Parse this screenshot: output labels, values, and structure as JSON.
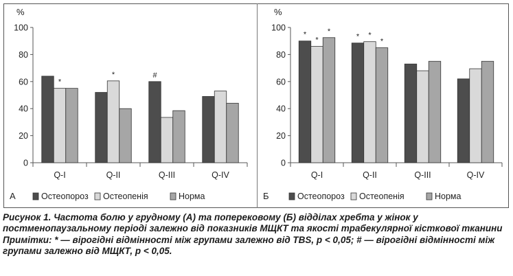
{
  "chart_data": [
    {
      "type": "bar",
      "panel_label": "А",
      "y_unit_label": "%",
      "ylim": [
        0,
        100
      ],
      "yticks": [
        0,
        20,
        40,
        60,
        80,
        100
      ],
      "grid": false,
      "legend_position": "bottom",
      "categories": [
        "Q-I",
        "Q-II",
        "Q-III",
        "Q-IV"
      ],
      "series": [
        {
          "name": "Остеопороз",
          "color": "#4d4d4d",
          "values": [
            64,
            52,
            60,
            49
          ]
        },
        {
          "name": "Остеопенія",
          "color": "#d9d9d9",
          "values": [
            55,
            60.5,
            33.5,
            53
          ]
        },
        {
          "name": "Норма",
          "color": "#a6a6a6",
          "values": [
            55,
            40,
            38.5,
            44
          ]
        }
      ],
      "annotations": [
        {
          "category": "Q-I",
          "series": "Остеопенія",
          "text": "*"
        },
        {
          "category": "Q-II",
          "series": "Остеопенія",
          "text": "*"
        },
        {
          "category": "Q-III",
          "series": "Остеопороз",
          "text": "#"
        }
      ]
    },
    {
      "type": "bar",
      "panel_label": "Б",
      "y_unit_label": "%",
      "ylim": [
        0,
        100
      ],
      "yticks": [
        0,
        20,
        40,
        60,
        80,
        100
      ],
      "grid": false,
      "legend_position": "bottom",
      "categories": [
        "Q-I",
        "Q-II",
        "Q-III",
        "Q-IV"
      ],
      "series": [
        {
          "name": "Остеопороз",
          "color": "#4d4d4d",
          "values": [
            90,
            88.5,
            73,
            62
          ]
        },
        {
          "name": "Остеопенія",
          "color": "#d9d9d9",
          "values": [
            86,
            89.5,
            68,
            69.5
          ]
        },
        {
          "name": "Норма",
          "color": "#a6a6a6",
          "values": [
            92.5,
            85,
            75,
            75
          ]
        }
      ],
      "annotations": [
        {
          "category": "Q-I",
          "series": "Остеопороз",
          "text": "*"
        },
        {
          "category": "Q-I",
          "series": "Остеопенія",
          "text": "*"
        },
        {
          "category": "Q-I",
          "series": "Норма",
          "text": "*"
        },
        {
          "category": "Q-II",
          "series": "Остеопороз",
          "text": "*"
        },
        {
          "category": "Q-II",
          "series": "Остеопенія",
          "text": "*"
        },
        {
          "category": "Q-II",
          "series": "Норма",
          "text": "*"
        }
      ]
    }
  ],
  "caption": {
    "title": "Рисунок 1. Частота болю у грудному (А) та поперековому (Б) відділах хребта у жінок у постменопаузальному періоді залежно від показників МЩКТ та якості трабекулярної кісткової тканини",
    "note": "Примітки: * — вірогідні відмінності між групами залежно від TBS, р < 0,05; # — вірогідні відмінності між групами залежно від МЩКТ, р < 0,05."
  }
}
